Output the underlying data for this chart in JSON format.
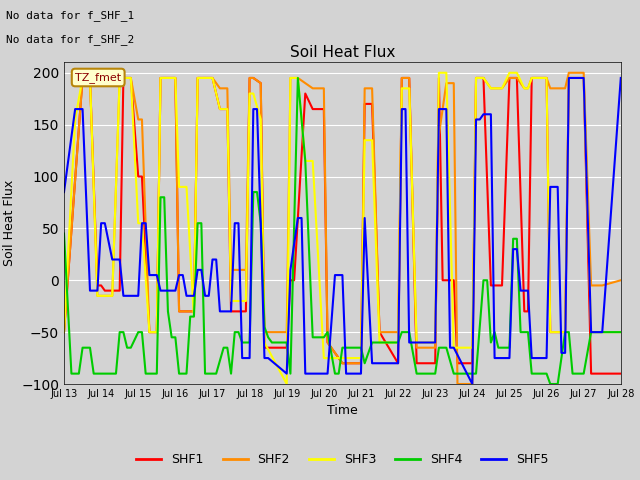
{
  "title": "Soil Heat Flux",
  "ylabel": "Soil Heat Flux",
  "xlabel": "Time",
  "ylim": [
    -100,
    210
  ],
  "yticks": [
    -100,
    -50,
    0,
    50,
    100,
    150,
    200
  ],
  "annotation_lines": [
    "No data for f_SHF_1",
    "No data for f_SHF_2"
  ],
  "box_label": "TZ_fmet",
  "background_color": "#d3d3d3",
  "colors": {
    "SHF1": "#ff0000",
    "SHF2": "#ff8c00",
    "SHF3": "#ffff00",
    "SHF4": "#00cc00",
    "SHF5": "#0000ff"
  },
  "SHF1": [
    [
      13.0,
      -50
    ],
    [
      13.5,
      195
    ],
    [
      13.7,
      195
    ],
    [
      13.9,
      -5
    ],
    [
      14.0,
      -5
    ],
    [
      14.1,
      -10
    ],
    [
      14.5,
      -10
    ],
    [
      14.6,
      195
    ],
    [
      14.8,
      195
    ],
    [
      15.0,
      100
    ],
    [
      15.1,
      100
    ],
    [
      15.3,
      -50
    ],
    [
      15.5,
      -50
    ],
    [
      15.6,
      195
    ],
    [
      16.0,
      195
    ],
    [
      16.1,
      -30
    ],
    [
      16.5,
      -30
    ],
    [
      16.6,
      195
    ],
    [
      17.0,
      195
    ],
    [
      17.2,
      165
    ],
    [
      17.4,
      165
    ],
    [
      17.5,
      -30
    ],
    [
      17.9,
      -30
    ],
    [
      18.0,
      195
    ],
    [
      18.1,
      195
    ],
    [
      18.3,
      190
    ],
    [
      18.4,
      -65
    ],
    [
      19.0,
      -65
    ],
    [
      19.1,
      0
    ],
    [
      19.2,
      0
    ],
    [
      19.5,
      180
    ],
    [
      19.7,
      165
    ],
    [
      20.0,
      165
    ],
    [
      20.1,
      -60
    ],
    [
      20.5,
      -80
    ],
    [
      21.0,
      -80
    ],
    [
      21.1,
      170
    ],
    [
      21.3,
      170
    ],
    [
      21.5,
      -50
    ],
    [
      22.0,
      -80
    ],
    [
      22.1,
      195
    ],
    [
      22.3,
      195
    ],
    [
      22.5,
      -80
    ],
    [
      23.0,
      -80
    ],
    [
      23.1,
      195
    ],
    [
      23.2,
      0
    ],
    [
      23.5,
      0
    ],
    [
      23.6,
      -80
    ],
    [
      24.0,
      -80
    ],
    [
      24.1,
      195
    ],
    [
      24.3,
      195
    ],
    [
      24.5,
      -5
    ],
    [
      24.8,
      -5
    ],
    [
      25.0,
      195
    ],
    [
      25.2,
      195
    ],
    [
      25.4,
      -30
    ],
    [
      25.5,
      -30
    ],
    [
      25.6,
      195
    ],
    [
      26.0,
      195
    ],
    [
      26.1,
      -50
    ],
    [
      26.5,
      -50
    ],
    [
      26.6,
      195
    ],
    [
      27.0,
      195
    ],
    [
      27.2,
      -90
    ],
    [
      27.5,
      -90
    ],
    [
      28.0,
      -90
    ]
  ],
  "SHF2": [
    [
      13.0,
      -50
    ],
    [
      13.5,
      195
    ],
    [
      13.7,
      195
    ],
    [
      13.9,
      -15
    ],
    [
      14.0,
      -15
    ],
    [
      14.3,
      -15
    ],
    [
      14.5,
      195
    ],
    [
      14.8,
      195
    ],
    [
      15.0,
      155
    ],
    [
      15.1,
      155
    ],
    [
      15.3,
      -50
    ],
    [
      15.5,
      -50
    ],
    [
      15.6,
      195
    ],
    [
      16.0,
      195
    ],
    [
      16.1,
      -30
    ],
    [
      16.5,
      -30
    ],
    [
      16.6,
      195
    ],
    [
      17.0,
      195
    ],
    [
      17.2,
      185
    ],
    [
      17.4,
      185
    ],
    [
      17.5,
      10
    ],
    [
      17.9,
      10
    ],
    [
      18.0,
      195
    ],
    [
      18.1,
      195
    ],
    [
      18.3,
      190
    ],
    [
      18.4,
      -50
    ],
    [
      19.0,
      -50
    ],
    [
      19.1,
      195
    ],
    [
      19.3,
      195
    ],
    [
      19.5,
      190
    ],
    [
      19.7,
      185
    ],
    [
      20.0,
      185
    ],
    [
      20.1,
      -60
    ],
    [
      20.5,
      -80
    ],
    [
      21.0,
      -80
    ],
    [
      21.1,
      185
    ],
    [
      21.3,
      185
    ],
    [
      21.5,
      -50
    ],
    [
      22.0,
      -50
    ],
    [
      22.1,
      195
    ],
    [
      22.3,
      195
    ],
    [
      22.5,
      -65
    ],
    [
      23.0,
      -65
    ],
    [
      23.1,
      140
    ],
    [
      23.3,
      190
    ],
    [
      23.5,
      190
    ],
    [
      23.6,
      -100
    ],
    [
      24.0,
      -100
    ],
    [
      24.1,
      195
    ],
    [
      24.3,
      195
    ],
    [
      24.5,
      185
    ],
    [
      24.8,
      185
    ],
    [
      25.0,
      195
    ],
    [
      25.2,
      195
    ],
    [
      25.4,
      185
    ],
    [
      25.5,
      185
    ],
    [
      25.6,
      195
    ],
    [
      26.0,
      195
    ],
    [
      26.1,
      185
    ],
    [
      26.5,
      185
    ],
    [
      26.6,
      200
    ],
    [
      27.0,
      200
    ],
    [
      27.2,
      -5
    ],
    [
      27.5,
      -5
    ],
    [
      28.0,
      0
    ]
  ],
  "SHF3": [
    [
      13.0,
      -50
    ],
    [
      13.3,
      155
    ],
    [
      13.5,
      195
    ],
    [
      13.7,
      195
    ],
    [
      13.9,
      -15
    ],
    [
      14.0,
      -15
    ],
    [
      14.3,
      -15
    ],
    [
      14.5,
      195
    ],
    [
      14.8,
      195
    ],
    [
      15.0,
      55
    ],
    [
      15.1,
      55
    ],
    [
      15.3,
      -50
    ],
    [
      15.5,
      -50
    ],
    [
      15.6,
      195
    ],
    [
      16.0,
      195
    ],
    [
      16.1,
      90
    ],
    [
      16.3,
      90
    ],
    [
      16.5,
      -35
    ],
    [
      16.6,
      195
    ],
    [
      17.0,
      195
    ],
    [
      17.2,
      165
    ],
    [
      17.4,
      165
    ],
    [
      17.5,
      -20
    ],
    [
      17.9,
      -20
    ],
    [
      18.0,
      180
    ],
    [
      18.1,
      180
    ],
    [
      18.3,
      155
    ],
    [
      18.4,
      -60
    ],
    [
      19.0,
      -100
    ],
    [
      19.1,
      195
    ],
    [
      19.3,
      195
    ],
    [
      19.5,
      115
    ],
    [
      19.7,
      115
    ],
    [
      20.0,
      -75
    ],
    [
      20.1,
      -75
    ],
    [
      20.5,
      -75
    ],
    [
      21.0,
      -75
    ],
    [
      21.1,
      135
    ],
    [
      21.3,
      135
    ],
    [
      21.5,
      -60
    ],
    [
      22.0,
      -60
    ],
    [
      22.1,
      185
    ],
    [
      22.3,
      185
    ],
    [
      22.5,
      -60
    ],
    [
      23.0,
      -60
    ],
    [
      23.1,
      200
    ],
    [
      23.3,
      200
    ],
    [
      23.5,
      -65
    ],
    [
      24.0,
      -65
    ],
    [
      24.1,
      195
    ],
    [
      24.3,
      195
    ],
    [
      24.5,
      185
    ],
    [
      24.8,
      185
    ],
    [
      25.0,
      200
    ],
    [
      25.2,
      200
    ],
    [
      25.4,
      185
    ],
    [
      25.5,
      185
    ],
    [
      25.6,
      195
    ],
    [
      26.0,
      195
    ],
    [
      26.1,
      -50
    ],
    [
      26.5,
      -50
    ],
    [
      26.6,
      195
    ],
    [
      27.0,
      195
    ],
    [
      27.2,
      -50
    ],
    [
      27.5,
      -50
    ],
    [
      28.0,
      -50
    ]
  ],
  "SHF4": [
    [
      13.0,
      45
    ],
    [
      13.2,
      -90
    ],
    [
      13.4,
      -90
    ],
    [
      13.5,
      -65
    ],
    [
      13.7,
      -65
    ],
    [
      13.8,
      -90
    ],
    [
      14.0,
      -90
    ],
    [
      14.1,
      -90
    ],
    [
      14.4,
      -90
    ],
    [
      14.5,
      -50
    ],
    [
      14.6,
      -50
    ],
    [
      14.7,
      -65
    ],
    [
      14.8,
      -65
    ],
    [
      15.0,
      -50
    ],
    [
      15.1,
      -50
    ],
    [
      15.2,
      -90
    ],
    [
      15.3,
      -90
    ],
    [
      15.5,
      -90
    ],
    [
      15.6,
      80
    ],
    [
      15.7,
      80
    ],
    [
      15.8,
      -30
    ],
    [
      15.9,
      -55
    ],
    [
      16.0,
      -55
    ],
    [
      16.1,
      -90
    ],
    [
      16.3,
      -90
    ],
    [
      16.4,
      -35
    ],
    [
      16.5,
      -35
    ],
    [
      16.6,
      55
    ],
    [
      16.7,
      55
    ],
    [
      16.8,
      -90
    ],
    [
      17.0,
      -90
    ],
    [
      17.1,
      -90
    ],
    [
      17.3,
      -65
    ],
    [
      17.4,
      -65
    ],
    [
      17.5,
      -90
    ],
    [
      17.6,
      -50
    ],
    [
      17.7,
      -50
    ],
    [
      17.8,
      -60
    ],
    [
      18.0,
      -60
    ],
    [
      18.1,
      85
    ],
    [
      18.2,
      85
    ],
    [
      18.3,
      55
    ],
    [
      18.4,
      -45
    ],
    [
      18.5,
      -55
    ],
    [
      18.6,
      -60
    ],
    [
      19.0,
      -60
    ],
    [
      19.1,
      -90
    ],
    [
      19.3,
      195
    ],
    [
      19.5,
      115
    ],
    [
      19.7,
      -55
    ],
    [
      20.0,
      -55
    ],
    [
      20.1,
      -50
    ],
    [
      20.3,
      -90
    ],
    [
      20.4,
      -90
    ],
    [
      20.5,
      -65
    ],
    [
      21.0,
      -65
    ],
    [
      21.1,
      -80
    ],
    [
      21.3,
      -60
    ],
    [
      21.5,
      -60
    ],
    [
      22.0,
      -60
    ],
    [
      22.1,
      -50
    ],
    [
      22.3,
      -50
    ],
    [
      22.5,
      -90
    ],
    [
      23.0,
      -90
    ],
    [
      23.1,
      -65
    ],
    [
      23.3,
      -65
    ],
    [
      23.5,
      -90
    ],
    [
      24.0,
      -90
    ],
    [
      24.1,
      -90
    ],
    [
      24.3,
      0
    ],
    [
      24.4,
      0
    ],
    [
      24.5,
      -60
    ],
    [
      24.6,
      -50
    ],
    [
      24.7,
      -65
    ],
    [
      25.0,
      -65
    ],
    [
      25.1,
      40
    ],
    [
      25.2,
      40
    ],
    [
      25.3,
      -50
    ],
    [
      25.5,
      -50
    ],
    [
      25.6,
      -90
    ],
    [
      26.0,
      -90
    ],
    [
      26.1,
      -100
    ],
    [
      26.3,
      -100
    ],
    [
      26.5,
      -50
    ],
    [
      26.6,
      -50
    ],
    [
      26.7,
      -90
    ],
    [
      27.0,
      -90
    ],
    [
      27.2,
      -50
    ],
    [
      27.5,
      -50
    ],
    [
      28.0,
      -50
    ]
  ],
  "SHF5": [
    [
      13.0,
      85
    ],
    [
      13.3,
      165
    ],
    [
      13.5,
      165
    ],
    [
      13.7,
      -10
    ],
    [
      13.9,
      -10
    ],
    [
      14.0,
      55
    ],
    [
      14.1,
      55
    ],
    [
      14.3,
      20
    ],
    [
      14.5,
      20
    ],
    [
      14.6,
      -15
    ],
    [
      14.7,
      -15
    ],
    [
      15.0,
      -15
    ],
    [
      15.1,
      55
    ],
    [
      15.2,
      55
    ],
    [
      15.3,
      5
    ],
    [
      15.5,
      5
    ],
    [
      15.6,
      -10
    ],
    [
      15.7,
      -10
    ],
    [
      16.0,
      -10
    ],
    [
      16.1,
      5
    ],
    [
      16.2,
      5
    ],
    [
      16.3,
      -15
    ],
    [
      16.5,
      -15
    ],
    [
      16.6,
      10
    ],
    [
      16.7,
      10
    ],
    [
      16.8,
      -15
    ],
    [
      16.9,
      -15
    ],
    [
      17.0,
      20
    ],
    [
      17.1,
      20
    ],
    [
      17.2,
      -30
    ],
    [
      17.5,
      -30
    ],
    [
      17.6,
      55
    ],
    [
      17.7,
      55
    ],
    [
      17.8,
      -75
    ],
    [
      18.0,
      -75
    ],
    [
      18.1,
      165
    ],
    [
      18.2,
      165
    ],
    [
      18.3,
      55
    ],
    [
      18.4,
      -75
    ],
    [
      18.5,
      -75
    ],
    [
      19.0,
      -90
    ],
    [
      19.1,
      10
    ],
    [
      19.3,
      60
    ],
    [
      19.4,
      60
    ],
    [
      19.5,
      -90
    ],
    [
      20.0,
      -90
    ],
    [
      20.1,
      -90
    ],
    [
      20.3,
      5
    ],
    [
      20.5,
      5
    ],
    [
      20.6,
      -90
    ],
    [
      21.0,
      -90
    ],
    [
      21.1,
      60
    ],
    [
      21.3,
      -80
    ],
    [
      21.5,
      -80
    ],
    [
      22.0,
      -80
    ],
    [
      22.1,
      165
    ],
    [
      22.2,
      165
    ],
    [
      22.3,
      -60
    ],
    [
      22.5,
      -60
    ],
    [
      23.0,
      -60
    ],
    [
      23.1,
      165
    ],
    [
      23.3,
      165
    ],
    [
      23.4,
      -65
    ],
    [
      23.5,
      -65
    ],
    [
      24.0,
      -100
    ],
    [
      24.1,
      155
    ],
    [
      24.2,
      155
    ],
    [
      24.3,
      160
    ],
    [
      24.5,
      160
    ],
    [
      24.6,
      -75
    ],
    [
      24.7,
      -75
    ],
    [
      25.0,
      -75
    ],
    [
      25.1,
      30
    ],
    [
      25.2,
      30
    ],
    [
      25.3,
      -10
    ],
    [
      25.5,
      -10
    ],
    [
      25.6,
      -75
    ],
    [
      26.0,
      -75
    ],
    [
      26.1,
      90
    ],
    [
      26.3,
      90
    ],
    [
      26.4,
      -70
    ],
    [
      26.5,
      -70
    ],
    [
      26.6,
      195
    ],
    [
      27.0,
      195
    ],
    [
      27.2,
      -50
    ],
    [
      27.5,
      -50
    ],
    [
      28.0,
      195
    ]
  ],
  "xtick_labels": [
    "Jul 13",
    "Jul 14",
    "Jul 15",
    "Jul 16",
    "Jul 17",
    "Jul 18",
    "Jul 19",
    "Jul 20",
    "Jul 21",
    "Jul 22",
    "Jul 23",
    "Jul 24",
    "Jul 25",
    "Jul 26",
    "Jul 27",
    "Jul 28"
  ],
  "xtick_positions": [
    13,
    14,
    15,
    16,
    17,
    18,
    19,
    20,
    21,
    22,
    23,
    24,
    25,
    26,
    27,
    28
  ]
}
